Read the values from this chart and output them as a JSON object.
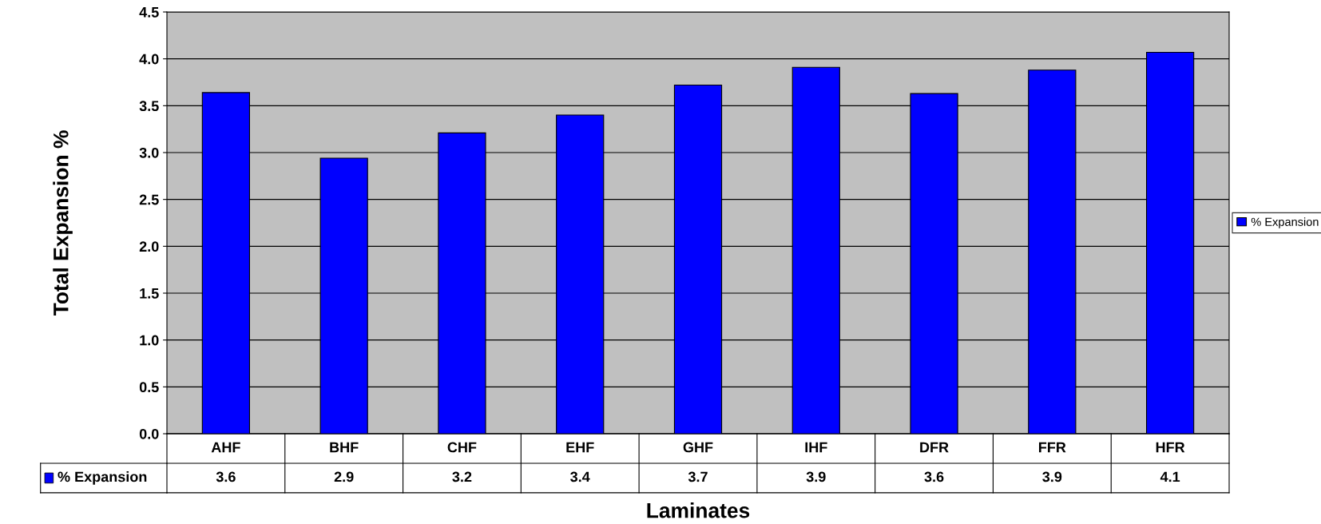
{
  "chart_data": {
    "type": "bar",
    "xlabel": "Laminates",
    "ylabel": "Total Expansion %",
    "categories": [
      "AHF",
      "BHF",
      "CHF",
      "EHF",
      "GHF",
      "IHF",
      "DFR",
      "FFR",
      "HFR"
    ],
    "series": [
      {
        "name": "% Expansion",
        "color": "#0000ff",
        "values": [
          3.64,
          2.94,
          3.21,
          3.4,
          3.72,
          3.91,
          3.63,
          3.88,
          4.07
        ],
        "value_labels": [
          "3.6",
          "2.9",
          "3.2",
          "3.4",
          "3.7",
          "3.9",
          "3.6",
          "3.9",
          "4.1"
        ]
      }
    ],
    "ylim": [
      0,
      4.5
    ],
    "yticks": [
      "0.0",
      "0.5",
      "1.0",
      "1.5",
      "2.0",
      "2.5",
      "3.0",
      "3.5",
      "4.0",
      "4.5"
    ],
    "grid": "y",
    "legend": "right"
  }
}
